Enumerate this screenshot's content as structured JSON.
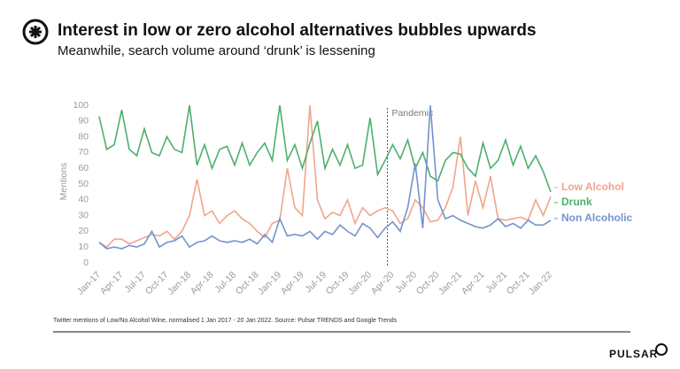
{
  "chart_data": {
    "type": "line",
    "title": "Interest in low or zero alcohol alternatives bubbles upwards",
    "subtitle": "Meanwhile, search volume around ‘drunk’ is lessening",
    "y_label": "Mentions",
    "annotation": "Pandemic",
    "footnote": "Twitter mentions of Low/No Alcohol Wine, normalised 1 Jan 2017 - 20 Jan 2022. Source: Pulsar TRENDS and Google Trends",
    "brand": "PULSAR",
    "categories": [
      "Jan-17",
      null,
      null,
      "Apr-17",
      null,
      null,
      "Jul-17",
      null,
      null,
      "Oct-17",
      null,
      null,
      "Jan-18",
      null,
      null,
      "Apr-18",
      null,
      null,
      "Jul-18",
      null,
      null,
      "Oct-18",
      null,
      null,
      "Jan-19",
      null,
      null,
      "Apr-19",
      null,
      null,
      "Jul-19",
      null,
      null,
      "Oct-19",
      null,
      null,
      "Jan-20",
      null,
      null,
      "Apr-20",
      null,
      null,
      "Jul-20",
      null,
      null,
      "Oct-20",
      null,
      null,
      "Jan-21",
      null,
      null,
      "Apr-21",
      null,
      null,
      "Jul-21",
      null,
      null,
      "Oct-21",
      null,
      null,
      "Jan-22"
    ],
    "series": [
      {
        "name": "Low Alcohol",
        "color": "#f0a58c",
        "values": [
          13,
          10,
          15,
          15,
          12,
          14,
          16,
          18,
          17,
          20,
          15,
          20,
          30,
          53,
          30,
          33,
          25,
          30,
          33,
          28,
          25,
          20,
          16,
          25,
          27,
          60,
          35,
          30,
          100,
          40,
          28,
          32,
          30,
          40,
          25,
          35,
          30,
          33,
          35,
          33,
          25,
          28,
          40,
          35,
          26,
          27,
          35,
          48,
          80,
          30,
          52,
          35,
          55,
          28,
          27,
          28,
          29,
          27,
          40,
          30,
          42
        ]
      },
      {
        "name": "Drunk",
        "color": "#4daf6c",
        "values": [
          93,
          72,
          75,
          97,
          72,
          68,
          85,
          70,
          68,
          80,
          72,
          70,
          100,
          62,
          75,
          60,
          72,
          74,
          62,
          76,
          62,
          70,
          76,
          65,
          100,
          65,
          75,
          60,
          76,
          90,
          60,
          72,
          62,
          75,
          60,
          62,
          92,
          56,
          65,
          75,
          66,
          78,
          60,
          70,
          55,
          52,
          65,
          70,
          69,
          60,
          55,
          76,
          60,
          65,
          78,
          62,
          74,
          60,
          68,
          58,
          45
        ]
      },
      {
        "name": "Non Alcoholic",
        "color": "#7393cc",
        "values": [
          13,
          9,
          10,
          9,
          11,
          10,
          12,
          20,
          10,
          13,
          14,
          17,
          10,
          13,
          14,
          17,
          14,
          13,
          14,
          13,
          15,
          12,
          18,
          13,
          28,
          17,
          18,
          17,
          20,
          15,
          20,
          18,
          24,
          20,
          17,
          25,
          22,
          16,
          22,
          26,
          20,
          35,
          63,
          22,
          100,
          40,
          28,
          30,
          27,
          25,
          23,
          22,
          24,
          28,
          23,
          25,
          22,
          27,
          24,
          24,
          27
        ]
      }
    ],
    "ylim": [
      0,
      100
    ],
    "yticks": [
      0,
      10,
      20,
      30,
      40,
      50,
      60,
      70,
      80,
      90,
      100
    ],
    "grid": false
  }
}
